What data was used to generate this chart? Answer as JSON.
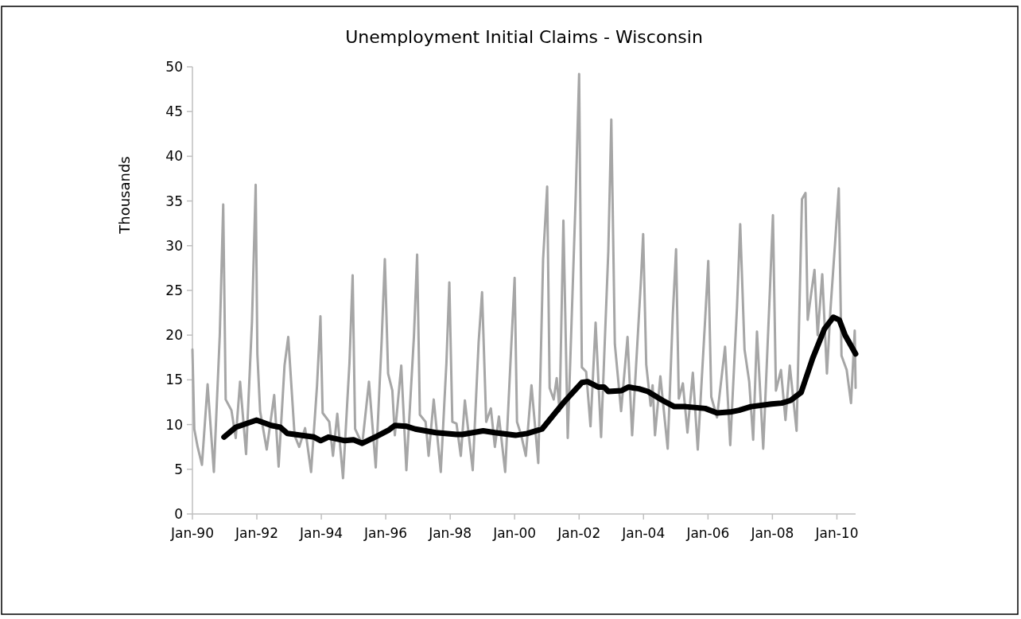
{
  "chart_data": {
    "type": "line",
    "title": "Unemployment Initial Claims - Wisconsin",
    "ylabel": "Thousands",
    "xlim": [
      "1990-01-01",
      "2010-08-01"
    ],
    "xticks": [
      {
        "value": "1990-01-01",
        "label": "Jan-90"
      },
      {
        "value": "1992-01-01",
        "label": "Jan-92"
      },
      {
        "value": "1994-01-01",
        "label": "Jan-94"
      },
      {
        "value": "1996-01-01",
        "label": "Jan-96"
      },
      {
        "value": "1998-01-01",
        "label": "Jan-98"
      },
      {
        "value": "2000-01-01",
        "label": "Jan-00"
      },
      {
        "value": "2002-01-01",
        "label": "Jan-02"
      },
      {
        "value": "2004-01-01",
        "label": "Jan-04"
      },
      {
        "value": "2006-01-01",
        "label": "Jan-06"
      },
      {
        "value": "2008-01-01",
        "label": "Jan-08"
      },
      {
        "value": "2010-01-01",
        "label": "Jan-10"
      }
    ],
    "ylim": [
      0,
      50
    ],
    "yticks": [
      0,
      5,
      10,
      15,
      20,
      25,
      30,
      35,
      40,
      45,
      50
    ],
    "grid": false,
    "series": [
      {
        "color": "#a6a6a6",
        "x": [
          "1990-01-01",
          "1990-01-22",
          "1990-03-01",
          "1990-04-19",
          "1990-06-22",
          "1990-09-01",
          "1990-11-07",
          "1990-12-16",
          "1991-01-13",
          "1991-03-19",
          "1991-05-07",
          "1991-06-25",
          "1991-09-01",
          "1991-11-07",
          "1991-12-19",
          "1992-01-07",
          "1992-02-07",
          "1992-04-22",
          "1992-07-16",
          "1992-09-04",
          "1992-11-10",
          "1992-12-22",
          "1993-03-04",
          "1993-04-25",
          "1993-07-01",
          "1993-09-07",
          "1993-11-13",
          "1993-12-22",
          "1994-01-16",
          "1994-04-01",
          "1994-05-13",
          "1994-07-01",
          "1994-09-04",
          "1994-11-16",
          "1994-12-22",
          "1995-01-19",
          "1995-04-10",
          "1995-06-25",
          "1995-09-10",
          "1995-11-16",
          "1995-12-22",
          "1996-01-28",
          "1996-03-16",
          "1996-04-13",
          "1996-06-25",
          "1996-08-22",
          "1996-11-16",
          "1996-12-22",
          "1997-01-22",
          "1997-03-28",
          "1997-05-01",
          "1997-06-28",
          "1997-09-16",
          "1997-11-19",
          "1997-12-22",
          "1998-01-25",
          "1998-03-13",
          "1998-05-01",
          "1998-06-16",
          "1998-09-13",
          "1998-11-19",
          "1998-12-28",
          "1999-02-13",
          "1999-04-07",
          "1999-05-22",
          "1999-07-07",
          "1999-09-16",
          "1999-11-22",
          "2000-01-01",
          "2000-01-28",
          "2000-03-16",
          "2000-05-07",
          "2000-07-10",
          "2000-09-25",
          "2000-11-19",
          "2001-01-04",
          "2001-02-01",
          "2001-03-19",
          "2001-04-22",
          "2001-05-25",
          "2001-07-07",
          "2001-08-25",
          "2001-11-22",
          "2002-01-01",
          "2002-02-01",
          "2002-03-22",
          "2002-05-10",
          "2002-07-07",
          "2002-09-07",
          "2002-11-28",
          "2003-01-01",
          "2003-02-10",
          "2003-04-22",
          "2003-07-04",
          "2003-08-25",
          "2003-12-01",
          "2003-12-28",
          "2004-02-01",
          "2004-03-22",
          "2004-04-13",
          "2004-05-10",
          "2004-07-10",
          "2004-10-01",
          "2004-11-28",
          "2005-01-04",
          "2005-02-04",
          "2005-03-22",
          "2005-05-13",
          "2005-07-13",
          "2005-09-07",
          "2005-12-01",
          "2006-01-04",
          "2006-02-07",
          "2006-04-13",
          "2006-07-13",
          "2006-09-10",
          "2006-11-25",
          "2007-01-01",
          "2007-02-19",
          "2007-04-13",
          "2007-05-28",
          "2007-07-10",
          "2007-09-19",
          "2007-12-04",
          "2008-01-07",
          "2008-02-10",
          "2008-04-07",
          "2008-05-28",
          "2008-07-16",
          "2008-10-01",
          "2008-12-01",
          "2009-01-10",
          "2009-02-04",
          "2009-03-16",
          "2009-04-22",
          "2009-05-28",
          "2009-07-19",
          "2009-09-10",
          "2009-10-19",
          "2009-12-10",
          "2010-01-22",
          "2010-02-22",
          "2010-04-22",
          "2010-06-10",
          "2010-07-22",
          "2010-08-01"
        ],
        "values": [
          18.4,
          9.5,
          7.5,
          5.5,
          14.5,
          4.7,
          20,
          34.6,
          12.8,
          11.6,
          8.5,
          14.8,
          6.7,
          21.5,
          36.8,
          17.9,
          11.5,
          7.2,
          13.3,
          5.3,
          16.6,
          19.8,
          8.8,
          7.5,
          9.6,
          4.7,
          14.3,
          22.1,
          11.3,
          10.3,
          6.5,
          11.2,
          4.0,
          16.9,
          26.7,
          9.5,
          7.8,
          14.8,
          5.2,
          19.4,
          28.5,
          15.7,
          13.8,
          8.8,
          16.6,
          4.9,
          19.9,
          29.0,
          11.1,
          10.3,
          6.5,
          12.8,
          4.7,
          16.9,
          25.9,
          10.3,
          10.1,
          6.5,
          12.7,
          4.9,
          19.2,
          24.8,
          10.3,
          11.8,
          7.5,
          10.9,
          4.7,
          18.4,
          26.4,
          10.3,
          8.8,
          6.5,
          14.4,
          5.7,
          28.5,
          36.6,
          14.1,
          12.8,
          15.2,
          11.5,
          32.8,
          8.5,
          35.1,
          49.2,
          16.4,
          15.9,
          9.8,
          21.4,
          8.6,
          29.4,
          44.1,
          19.0,
          11.5,
          19.8,
          8.8,
          25.8,
          31.3,
          16.7,
          12.1,
          14.4,
          8.8,
          15.4,
          7.3,
          22.3,
          29.6,
          12.9,
          14.6,
          9.1,
          15.8,
          7.2,
          22.0,
          28.3,
          13.1,
          10.8,
          18.7,
          7.7,
          23.0,
          32.4,
          18.4,
          14.8,
          8.3,
          20.4,
          7.3,
          25.1,
          33.4,
          13.8,
          16.1,
          10.5,
          16.6,
          9.3,
          35.2,
          35.9,
          21.7,
          24.7,
          27.3,
          20.0,
          26.8,
          15.7,
          22.7,
          30.1,
          36.4,
          17.7,
          16.1,
          12.4,
          20.5,
          14.1
        ]
      },
      {
        "color": "#000000",
        "x": [
          "1990-12-25",
          "1991-05-07",
          "1991-12-28",
          "1992-06-13",
          "1992-09-22",
          "1992-12-13",
          "1993-05-10",
          "1993-10-10",
          "1993-12-25",
          "1994-03-22",
          "1994-09-25",
          "1995-01-01",
          "1995-04-10",
          "1995-09-25",
          "1996-02-07",
          "1996-04-13",
          "1996-08-25",
          "1996-12-01",
          "1997-07-22",
          "1998-03-13",
          "1998-05-19",
          "1999-01-10",
          "1999-05-22",
          "2000-01-10",
          "2000-05-22",
          "2000-11-07",
          "2001-03-19",
          "2001-07-13",
          "2001-11-10",
          "2002-02-01",
          "2002-04-07",
          "2002-08-04",
          "2002-10-10",
          "2002-11-28",
          "2003-04-28",
          "2003-07-16",
          "2003-09-04",
          "2003-11-10",
          "2004-02-19",
          "2004-08-04",
          "2004-12-16",
          "2005-04-25",
          "2005-12-01",
          "2006-04-13",
          "2006-09-10",
          "2006-12-19",
          "2007-05-01",
          "2007-12-22",
          "2008-04-16",
          "2008-07-25",
          "2008-11-22",
          "2009-04-01",
          "2009-08-13",
          "2009-11-22",
          "2010-01-28",
          "2010-04-04",
          "2010-08-01"
        ],
        "values": [
          8.6,
          9.7,
          10.5,
          9.9,
          9.7,
          9.0,
          8.8,
          8.6,
          8.2,
          8.6,
          8.2,
          8.3,
          7.9,
          8.7,
          9.4,
          9.9,
          9.8,
          9.5,
          9.1,
          8.9,
          8.9,
          9.3,
          9.1,
          8.8,
          9.0,
          9.5,
          11.1,
          12.5,
          13.8,
          14.7,
          14.8,
          14.2,
          14.2,
          13.7,
          13.8,
          14.2,
          14.1,
          14.0,
          13.7,
          12.7,
          12.0,
          12.0,
          11.8,
          11.3,
          11.4,
          11.6,
          12.0,
          12.3,
          12.4,
          12.7,
          13.6,
          17.4,
          20.7,
          22.0,
          21.7,
          20.0,
          17.9
        ]
      }
    ]
  }
}
